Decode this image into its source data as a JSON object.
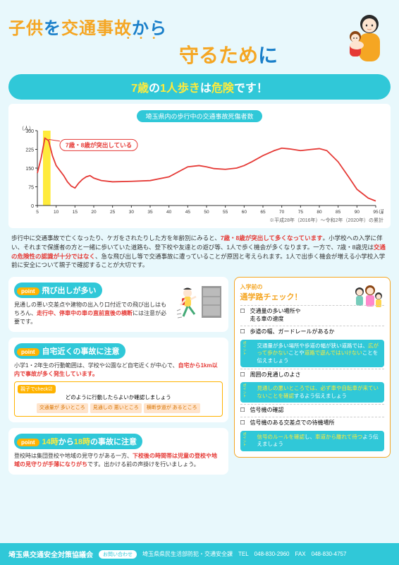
{
  "title": {
    "line1_part1": "子供",
    "line1_part2": "を",
    "line1_part3": "交通事故",
    "line1_part4": "から",
    "line2_part1": "守るため",
    "line2_part2": "に"
  },
  "banner": {
    "part1": "7歳",
    "part2": "の",
    "part3": "1人歩き",
    "part4": "は",
    "part5": "危険",
    "part6": "です！"
  },
  "chart": {
    "title": "埼玉県内の歩行中の交通事故死傷者数",
    "y_label": "（人）",
    "y_ticks": [
      0,
      75,
      150,
      225,
      300
    ],
    "x_label": "（歳）",
    "x_ticks": [
      5,
      10,
      15,
      20,
      25,
      30,
      35,
      40,
      45,
      50,
      55,
      60,
      65,
      70,
      75,
      80,
      85,
      90,
      95
    ],
    "highlight_x": [
      7,
      8
    ],
    "highlight_color": "#ffeb3b",
    "line_color": "#e53935",
    "annotation": "7歳・8歳が突出している",
    "data": [
      [
        5,
        130
      ],
      [
        6,
        190
      ],
      [
        7,
        270
      ],
      [
        8,
        260
      ],
      [
        9,
        200
      ],
      [
        10,
        160
      ],
      [
        11,
        140
      ],
      [
        12,
        120
      ],
      [
        13,
        95
      ],
      [
        14,
        78
      ],
      [
        15,
        70
      ],
      [
        16,
        90
      ],
      [
        17,
        105
      ],
      [
        18,
        115
      ],
      [
        19,
        120
      ],
      [
        20,
        110
      ],
      [
        22,
        100
      ],
      [
        25,
        95
      ],
      [
        30,
        97
      ],
      [
        35,
        100
      ],
      [
        40,
        115
      ],
      [
        45,
        155
      ],
      [
        48,
        160
      ],
      [
        50,
        155
      ],
      [
        52,
        148
      ],
      [
        55,
        145
      ],
      [
        58,
        150
      ],
      [
        60,
        160
      ],
      [
        62,
        175
      ],
      [
        65,
        200
      ],
      [
        68,
        220
      ],
      [
        70,
        230
      ],
      [
        72,
        227
      ],
      [
        75,
        220
      ],
      [
        78,
        225
      ],
      [
        80,
        228
      ],
      [
        82,
        220
      ],
      [
        85,
        175
      ],
      [
        88,
        110
      ],
      [
        90,
        65
      ],
      [
        93,
        30
      ],
      [
        95,
        18
      ]
    ],
    "note": "※平成28年（2016年）〜令和2年（2020年）の累計"
  },
  "body_text": {
    "p1": "歩行中に交通事故で亡くなったり、ケガをされたりした方を年齢別にみると、",
    "p1_red1": "7歳・8歳が突出して多くなっています",
    "p2": "。小学校への入学に伴い、それまで保護者の方と一緒に歩いていた道路も、登下校や友達との遊び等、1人で歩く機会が多くなります。一方で、7歳・8歳児は",
    "p2_red": "交通の危険性の認識が十分ではなく",
    "p3": "、急な飛び出し等で交通事故に遭っていることが原因と考えられます。1人で出歩く機会が増える小学校入学前に安全について親子で確認することが大切です。"
  },
  "points": [
    {
      "tag": "point",
      "title": "飛び出しが多い",
      "body_p1": "見通しの悪い交差点や建物の出入り口付近",
      "body_p2": "での飛び出しはもちろん、",
      "body_red1": "走行中、停車中の車の直前直後の横断",
      "body_p3": "には注意が必要です。"
    },
    {
      "tag": "point",
      "title": "自宅近くの事故に注意",
      "body_p1": "小学1・2年生の行動範囲は、学校や公園など自宅近くが中心で、",
      "body_red1": "自宅から1km以内で事故が多く発生しています。",
      "check_label": "親子でcheck☑",
      "check_header": "どのように行動したらよいか確認しましょう",
      "check_items": [
        "交通量が\n多いところ",
        "見通しの\n悪いところ",
        "横断歩道が\nあるところ"
      ]
    },
    {
      "tag": "point",
      "title_p1": "14時",
      "title_p2": "から",
      "title_p3": "18時",
      "title_p4": "の事故に注意",
      "body_p1": "登校時は集団登校や地域の見守りがある一方、",
      "body_red1": "下校後の時間帯は児童の登校や地域の見守りが手薄になりがち",
      "body_p2": "です。出かける前の声掛けを行いましょう。"
    }
  ],
  "checklist": {
    "title_small": "入学前の",
    "title_main": "通学路チェック！",
    "items": [
      {
        "text": "交通量の多い場所や\n走る車の速度"
      },
      {
        "text": "歩道の幅、ガードレールがあるか",
        "point": "交通量が多い場所や歩道の幅が狭い道路では、<span class='y'>広がって歩かない</span>ことや<span class='y'>道路で遊んではいけない</span>ことを伝えましょう"
      },
      {
        "text": "周囲の見通しのよさ",
        "point": "<span class='y'>見通しの悪いところでは、必ず車や自転車が来ていないことを確認</span>するよう伝えましょう"
      },
      {
        "text": "信号機の確認"
      },
      {
        "text": "信号機のある交差点での待機場所",
        "point": "<span class='y'>信号のルールを確認</span>し、<span class='y'>車道から離れて待つ</span>よう伝えましょう"
      }
    ]
  },
  "footer": {
    "org": "埼玉県交通安全対策協議会",
    "contact_label": "お問い合わせ",
    "contact": "埼玉県県民生活部防犯・交通安全課",
    "tel_label": "TEL",
    "tel": "048-830-2960",
    "fax_label": "FAX",
    "fax": "048-830-4757"
  }
}
